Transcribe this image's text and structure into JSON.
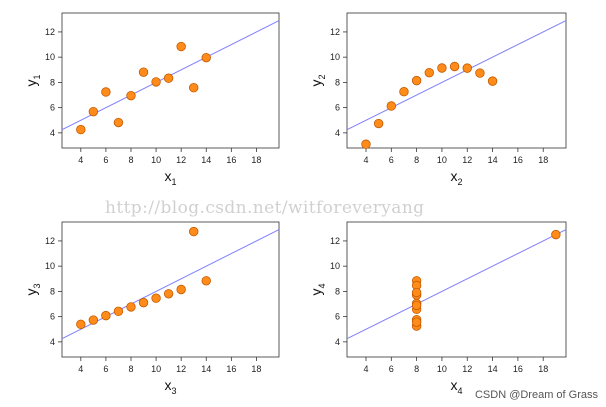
{
  "chart_data": [
    {
      "type": "scatter",
      "xlabel": "x",
      "xlabel_sub": "1",
      "ylabel": "y",
      "ylabel_sub": "1",
      "xlim": [
        2.5,
        19.8
      ],
      "ylim": [
        2.8,
        13.5
      ],
      "xticks": [
        "4",
        "6",
        "8",
        "10",
        "12",
        "14",
        "16",
        "18"
      ],
      "yticks": [
        "4",
        "6",
        "8",
        "10",
        "12"
      ],
      "fit_line": {
        "intercept": 3.0,
        "slope": 0.5
      },
      "points": [
        [
          10,
          8.04
        ],
        [
          8,
          6.95
        ],
        [
          13,
          7.58
        ],
        [
          9,
          8.81
        ],
        [
          11,
          8.33
        ],
        [
          14,
          9.96
        ],
        [
          6,
          7.24
        ],
        [
          4,
          4.26
        ],
        [
          12,
          10.84
        ],
        [
          7,
          4.82
        ],
        [
          5,
          5.68
        ]
      ]
    },
    {
      "type": "scatter",
      "xlabel": "x",
      "xlabel_sub": "2",
      "ylabel": "y",
      "ylabel_sub": "2",
      "xlim": [
        2.5,
        19.8
      ],
      "ylim": [
        2.8,
        13.5
      ],
      "xticks": [
        "4",
        "6",
        "8",
        "10",
        "12",
        "14",
        "16",
        "18"
      ],
      "yticks": [
        "4",
        "6",
        "8",
        "10",
        "12"
      ],
      "fit_line": {
        "intercept": 3.0,
        "slope": 0.5
      },
      "points": [
        [
          10,
          9.14
        ],
        [
          8,
          8.14
        ],
        [
          13,
          8.74
        ],
        [
          9,
          8.77
        ],
        [
          11,
          9.26
        ],
        [
          14,
          8.1
        ],
        [
          6,
          6.13
        ],
        [
          4,
          3.1
        ],
        [
          12,
          9.13
        ],
        [
          7,
          7.26
        ],
        [
          5,
          4.74
        ]
      ]
    },
    {
      "type": "scatter",
      "xlabel": "x",
      "xlabel_sub": "3",
      "ylabel": "y",
      "ylabel_sub": "3",
      "xlim": [
        2.5,
        19.8
      ],
      "ylim": [
        2.8,
        13.5
      ],
      "xticks": [
        "4",
        "6",
        "8",
        "10",
        "12",
        "14",
        "16",
        "18"
      ],
      "yticks": [
        "4",
        "6",
        "8",
        "10",
        "12"
      ],
      "fit_line": {
        "intercept": 3.0,
        "slope": 0.5
      },
      "points": [
        [
          10,
          7.46
        ],
        [
          8,
          6.77
        ],
        [
          13,
          12.74
        ],
        [
          9,
          7.11
        ],
        [
          11,
          7.81
        ],
        [
          14,
          8.84
        ],
        [
          6,
          6.08
        ],
        [
          4,
          5.39
        ],
        [
          12,
          8.15
        ],
        [
          7,
          6.42
        ],
        [
          5,
          5.73
        ]
      ]
    },
    {
      "type": "scatter",
      "xlabel": "x",
      "xlabel_sub": "4",
      "ylabel": "y",
      "ylabel_sub": "4",
      "xlim": [
        2.5,
        19.8
      ],
      "ylim": [
        2.8,
        13.5
      ],
      "xticks": [
        "4",
        "6",
        "8",
        "10",
        "12",
        "14",
        "16",
        "18"
      ],
      "yticks": [
        "4",
        "6",
        "8",
        "10",
        "12"
      ],
      "fit_line": {
        "intercept": 3.0,
        "slope": 0.5
      },
      "points": [
        [
          8,
          6.58
        ],
        [
          8,
          5.76
        ],
        [
          8,
          7.71
        ],
        [
          8,
          8.84
        ],
        [
          8,
          8.47
        ],
        [
          8,
          7.04
        ],
        [
          8,
          5.25
        ],
        [
          19,
          12.5
        ],
        [
          8,
          5.56
        ],
        [
          8,
          7.91
        ],
        [
          8,
          6.89
        ]
      ]
    }
  ],
  "colors": {
    "point_fill": "#ff8c1a",
    "point_stroke": "#c45a00",
    "fit_line": "#7f7fff",
    "frame": "#333333"
  },
  "watermark": "http://blog.csdn.net/witforeveryang",
  "credit": "CSDN @Dream of Grass"
}
